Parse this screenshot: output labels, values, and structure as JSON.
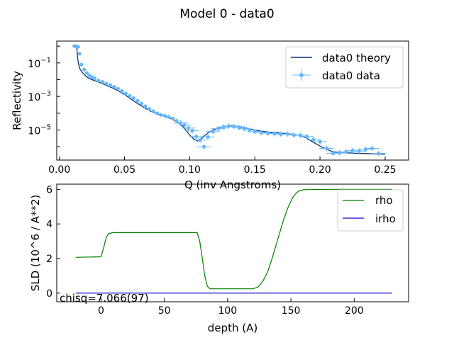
{
  "suptitle": "Model 0 - data0",
  "chart_data": [
    {
      "type": "line",
      "xlabel": "Q (inv Angstroms)",
      "ylabel": "Reflectivity",
      "xscale": "linear",
      "yscale": "log",
      "xlim": [
        -0.002,
        0.268
      ],
      "ylim": [
        1.6e-07,
        2.0
      ],
      "xticks": [
        0.0,
        0.05,
        0.1,
        0.15,
        0.2,
        0.25
      ],
      "xtick_labels": [
        "0.00",
        "0.05",
        "0.10",
        "0.15",
        "0.20",
        "0.25"
      ],
      "yticks": [
        1e-05,
        0.001,
        0.1
      ],
      "legend": {
        "position": "upper right"
      },
      "series": [
        {
          "name": "data0 theory",
          "color": "#08306b",
          "x": [
            0.011,
            0.012,
            0.013,
            0.0135,
            0.014,
            0.015,
            0.016,
            0.018,
            0.02,
            0.022,
            0.025,
            0.03,
            0.035,
            0.04,
            0.045,
            0.05,
            0.055,
            0.06,
            0.065,
            0.07,
            0.075,
            0.08,
            0.085,
            0.09,
            0.095,
            0.098,
            0.1,
            0.103,
            0.106,
            0.109,
            0.112,
            0.115,
            0.118,
            0.122,
            0.126,
            0.13,
            0.135,
            0.14,
            0.145,
            0.15,
            0.155,
            0.16,
            0.165,
            0.17,
            0.175,
            0.18,
            0.185,
            0.19,
            0.195,
            0.2,
            0.205,
            0.21,
            0.215,
            0.22,
            0.225,
            0.23,
            0.235,
            0.24,
            0.245,
            0.25
          ],
          "y": [
            1.0,
            1.0,
            0.95,
            0.6,
            0.2,
            0.07,
            0.04,
            0.025,
            0.017,
            0.013,
            0.01,
            0.0072,
            0.005,
            0.0034,
            0.0022,
            0.0013,
            0.0007,
            0.00038,
            0.00022,
            0.00013,
            9e-05,
            7e-05,
            5e-05,
            3.2e-05,
            1.6e-05,
            8e-06,
            5e-06,
            3e-06,
            2.2e-06,
            3e-06,
            5e-06,
            7.5e-06,
            1e-05,
            1.3e-05,
            1.6e-05,
            1.8e-05,
            1.7e-05,
            1.5e-05,
            1.2e-05,
            1e-05,
            8.5e-06,
            7.5e-06,
            7e-06,
            6.5e-06,
            6e-06,
            5.5e-06,
            4.5e-06,
            3.2e-06,
            1.8e-06,
            1.1e-06,
            7e-07,
            5e-07,
            4.5e-07,
            4.3e-07,
            4.2e-07,
            4e-07,
            3.9e-07,
            3.8e-07,
            3.7e-07,
            3.6e-07
          ]
        },
        {
          "name": "data0 data",
          "color": "#63b8ff",
          "x": [
            0.0115,
            0.0125,
            0.0135,
            0.0145,
            0.0155,
            0.017,
            0.019,
            0.021,
            0.023,
            0.025,
            0.027,
            0.03,
            0.033,
            0.036,
            0.039,
            0.042,
            0.045,
            0.048,
            0.051,
            0.054,
            0.057,
            0.06,
            0.063,
            0.066,
            0.069,
            0.072,
            0.075,
            0.078,
            0.081,
            0.084,
            0.087,
            0.09,
            0.093,
            0.096,
            0.099,
            0.102,
            0.105,
            0.108,
            0.111,
            0.114,
            0.118,
            0.122,
            0.126,
            0.13,
            0.134,
            0.138,
            0.142,
            0.146,
            0.15,
            0.155,
            0.16,
            0.165,
            0.17,
            0.175,
            0.18,
            0.185,
            0.19,
            0.195,
            0.2,
            0.205,
            0.21,
            0.215,
            0.22,
            0.225,
            0.23,
            0.235,
            0.24,
            0.245
          ],
          "y": [
            1.0,
            1.0,
            0.98,
            0.9,
            0.35,
            0.08,
            0.04,
            0.025,
            0.018,
            0.014,
            0.012,
            0.009,
            0.0075,
            0.006,
            0.0048,
            0.0038,
            0.0029,
            0.0021,
            0.0015,
            0.0011,
            0.0008,
            0.00055,
            0.00038,
            0.00026,
            0.00018,
            0.00013,
            0.0001,
            8e-05,
            7e-05,
            6e-05,
            4.8e-05,
            3.5e-05,
            2.6e-05,
            2e-05,
            1.3e-05,
            9e-06,
            4e-06,
            2.5e-06,
            1e-06,
            3.8e-06,
            8e-06,
            1.2e-05,
            1.5e-05,
            1.7e-05,
            1.6e-05,
            1.4e-05,
            1.2e-05,
            1e-05,
            8e-06,
            7e-06,
            6.5e-06,
            6e-06,
            5.5e-06,
            5.8e-06,
            5e-06,
            4.8e-06,
            4e-06,
            2.6e-06,
            2e-06,
            8e-07,
            4e-07,
            4.4e-07,
            5e-07,
            6e-07,
            5.5e-07,
            7e-07,
            8e-07,
            4e-07
          ]
        }
      ]
    },
    {
      "type": "line",
      "xlabel": "depth (A)",
      "ylabel": "SLD (10^6 / A**2)",
      "xlim": [
        -35,
        243
      ],
      "ylim": [
        -0.5,
        6.3
      ],
      "xticks": [
        0,
        50,
        100,
        150,
        200
      ],
      "yticks": [
        0,
        2,
        4,
        6
      ],
      "legend": {
        "position": "upper right"
      },
      "annotation": "chisq=7.066(97)",
      "series": [
        {
          "name": "rho",
          "color": "#008000",
          "x": [
            -20,
            0,
            2,
            4,
            6,
            10,
            20,
            40,
            60,
            76,
            78,
            80,
            82,
            84,
            86,
            90,
            100,
            120,
            124,
            128,
            132,
            136,
            140,
            144,
            148,
            152,
            156,
            160,
            180,
            200,
            230
          ],
          "y": [
            2.07,
            2.1,
            2.6,
            3.2,
            3.45,
            3.5,
            3.5,
            3.5,
            3.5,
            3.5,
            3.0,
            2.0,
            1.0,
            0.4,
            0.25,
            0.25,
            0.25,
            0.25,
            0.35,
            0.7,
            1.3,
            2.2,
            3.2,
            4.2,
            5.0,
            5.6,
            5.9,
            5.98,
            6.0,
            6.0,
            6.0
          ]
        },
        {
          "name": "irho",
          "color": "#0000cd",
          "x": [
            -20,
            230
          ],
          "y": [
            0.0,
            0.0
          ]
        }
      ]
    }
  ]
}
